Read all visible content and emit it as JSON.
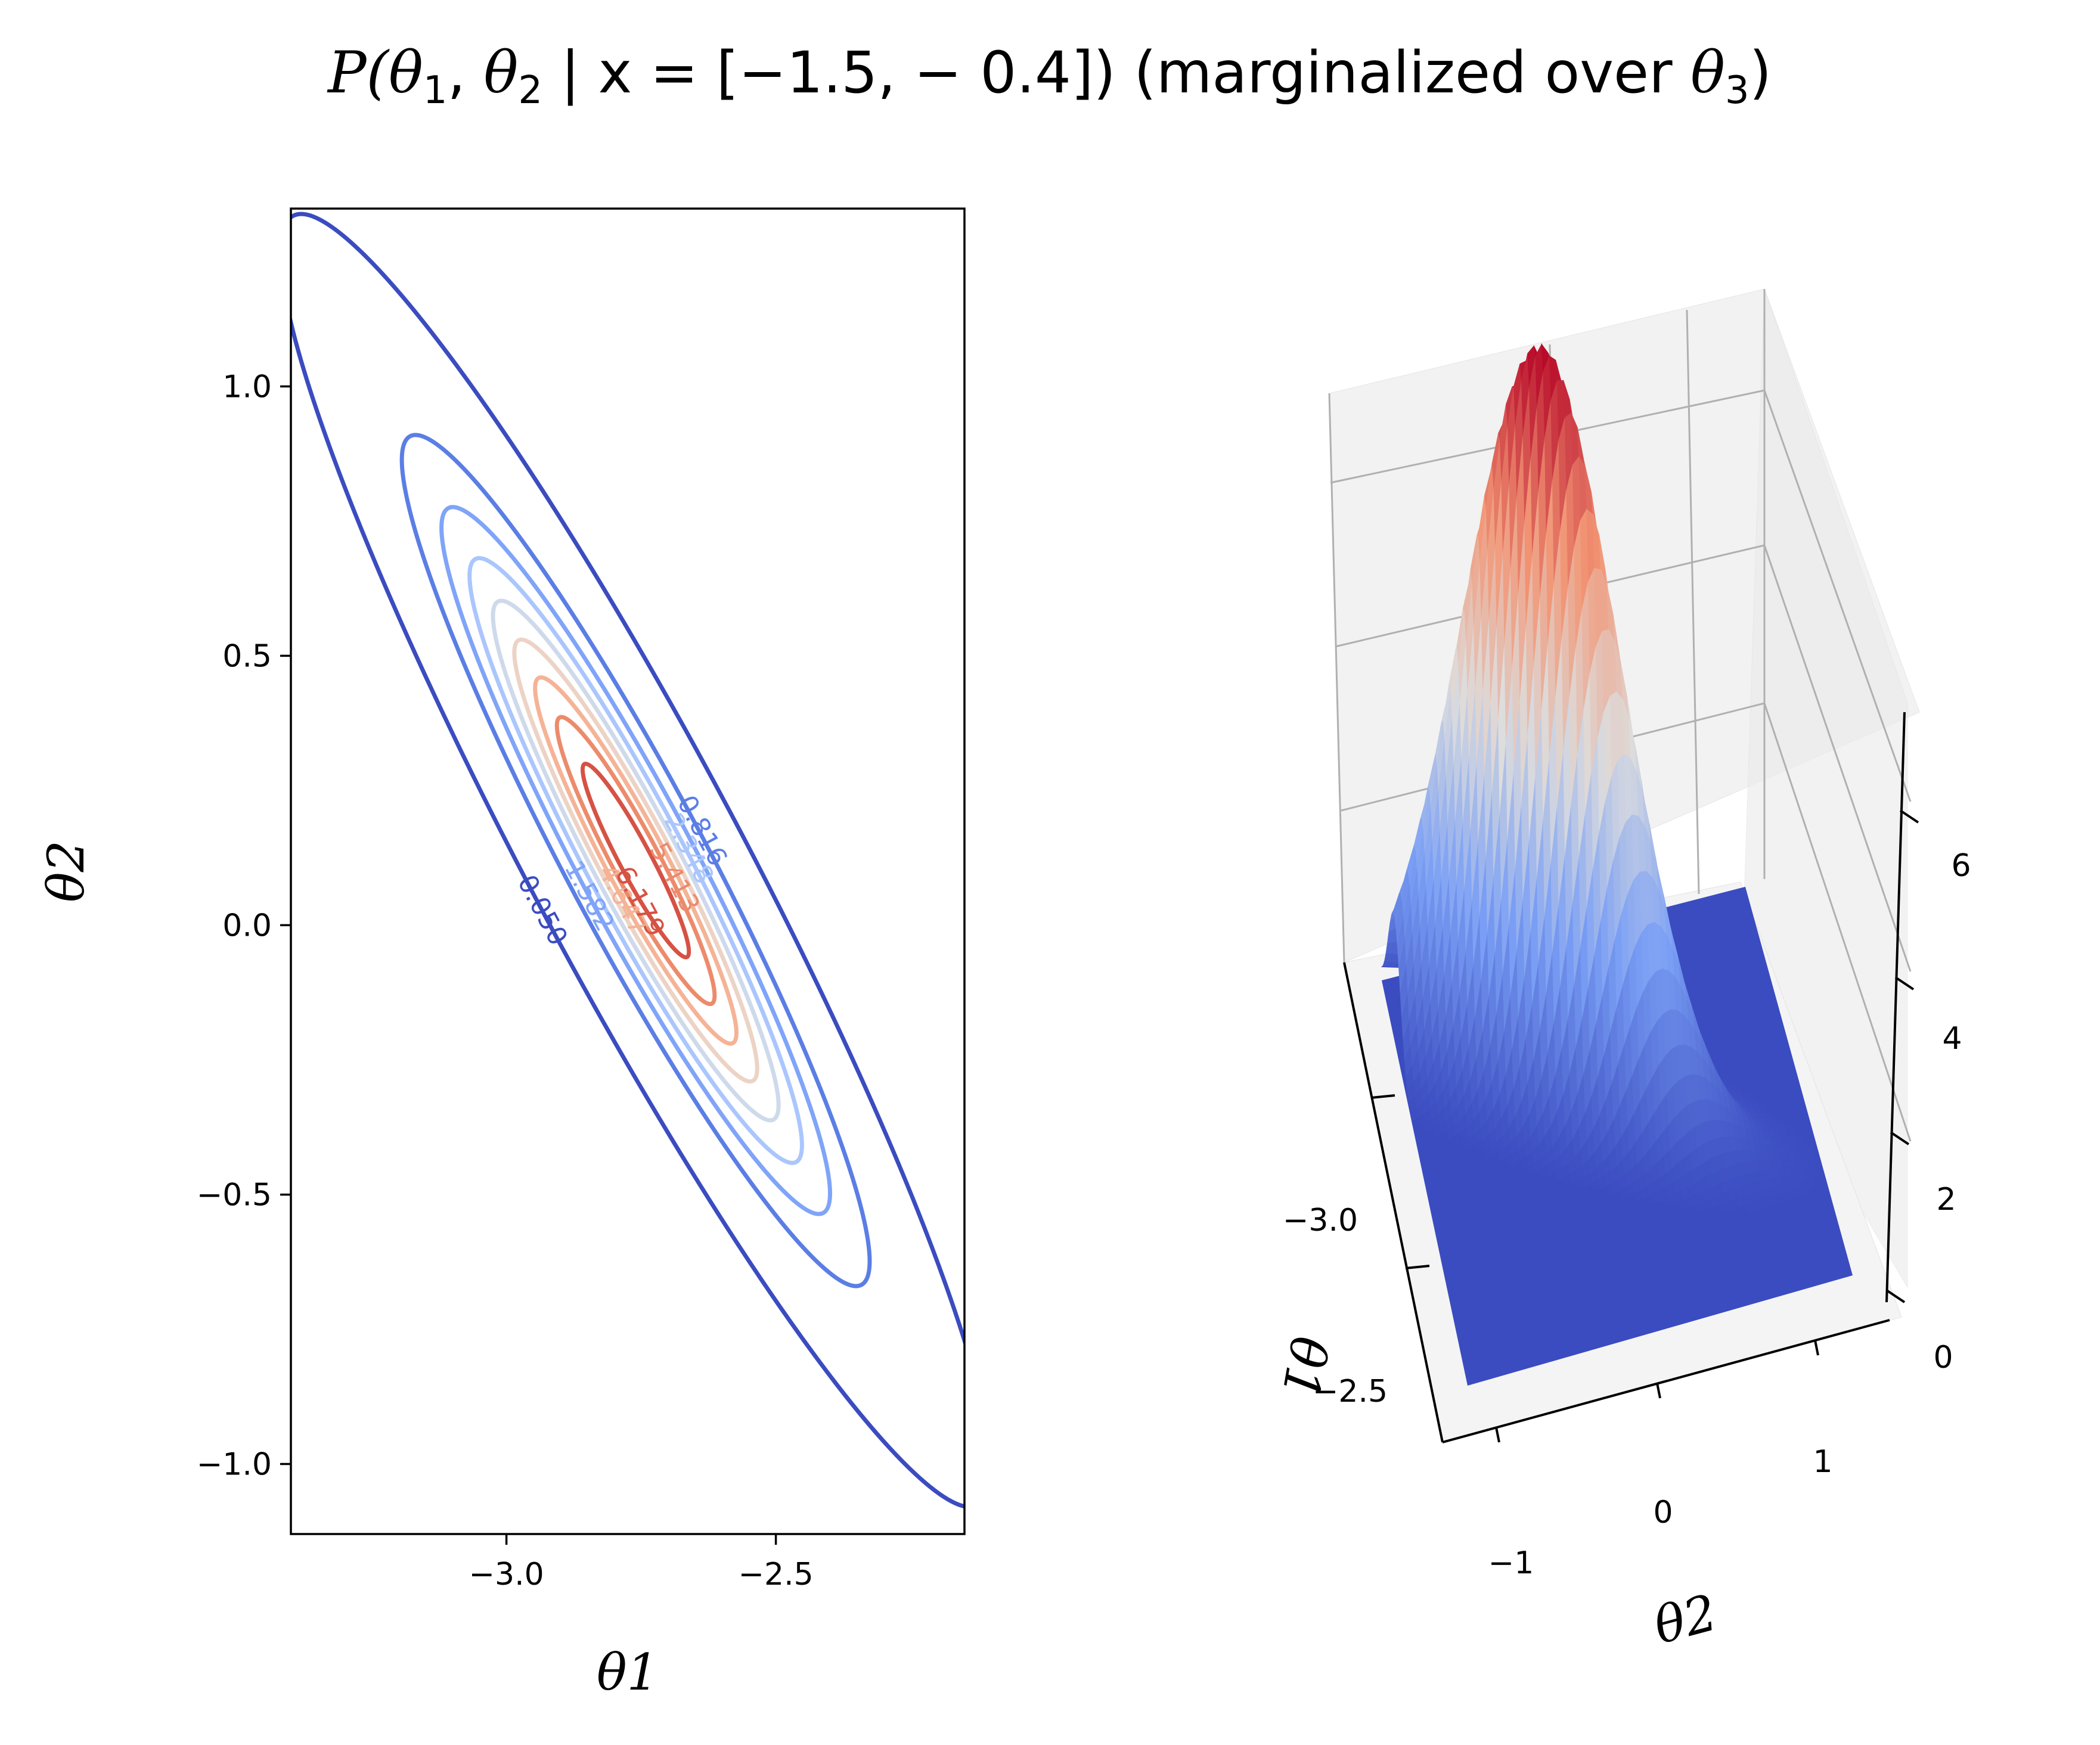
{
  "title": {
    "prefix": "P(",
    "var1": "θ",
    "sub1": "1",
    "sep": ", ",
    "var2": "θ",
    "sub2": "2",
    "cond": " | x = [−1.5, − 0.4]) (marginalized over ",
    "var3": "θ",
    "sub3": "3",
    "close": ")"
  },
  "chart_data": [
    {
      "type": "contour",
      "xlabel": "θ1",
      "ylabel": "θ2",
      "xlim": [
        -3.4,
        -2.15
      ],
      "ylim": [
        -1.13,
        1.33
      ],
      "xticks": [
        -3.0,
        -2.5
      ],
      "xtick_labels": [
        "−3.0",
        "−2.5"
      ],
      "yticks": [
        -1.0,
        -0.5,
        0.0,
        0.5,
        1.0
      ],
      "ytick_labels": [
        "−1.0",
        "−0.5",
        "0.0",
        "0.5",
        "1.0"
      ],
      "center": [
        -2.76,
        0.12
      ],
      "colormap": "coolwarm",
      "levels": [
        {
          "value": 0.05,
          "label": "0.050",
          "color": "#3b4cc0"
        },
        {
          "value": 0.816,
          "label": "0.816",
          "color": "#5b7ee5"
        },
        {
          "value": 1.582,
          "label": "1.582",
          "color": "#7fa4f8"
        },
        {
          "value": 2.348,
          "label": "2.348",
          "color": "#aac6fd"
        },
        {
          "value": 3.114,
          "label": "",
          "color": "#cedaeb"
        },
        {
          "value": 3.881,
          "label": "",
          "color": "#ecd3c5"
        },
        {
          "value": 4.647,
          "label": "4.647",
          "color": "#f5b396"
        },
        {
          "value": 5.413,
          "label": "5.413",
          "color": "#ec8b6b"
        },
        {
          "value": 6.179,
          "label": "6.179",
          "color": "#d65244"
        }
      ]
    },
    {
      "type": "surface3d",
      "xlabel": "θ1",
      "ylabel": "θ2",
      "zlabel": "",
      "x_ticks": [
        "−3.0",
        "−2.5"
      ],
      "y_ticks": [
        "−1",
        "0",
        "1"
      ],
      "z_ticks": [
        "0",
        "2",
        "4",
        "6"
      ],
      "zlim": [
        0,
        7.0
      ],
      "peak": 6.9,
      "colormap": "coolwarm",
      "floor_color": "#3b4cc0",
      "peak_color": "#b40426"
    }
  ]
}
